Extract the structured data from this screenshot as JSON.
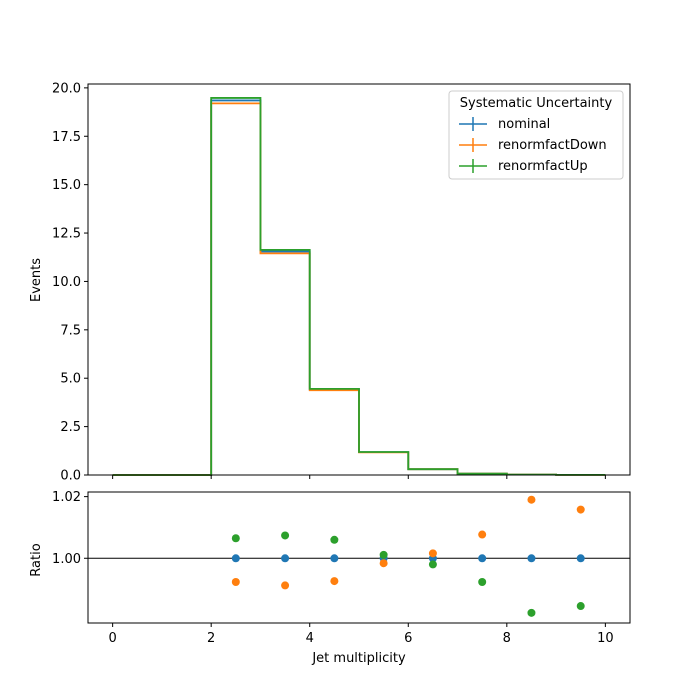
{
  "chart_data": [
    {
      "type": "line",
      "panel": "main",
      "style": "step histogram",
      "x": [
        0,
        1,
        2,
        3,
        4,
        5,
        6,
        7,
        8,
        9,
        10
      ],
      "bins": [
        [
          0,
          1
        ],
        [
          1,
          2
        ],
        [
          2,
          3
        ],
        [
          3,
          4
        ],
        [
          4,
          5
        ],
        [
          5,
          6
        ],
        [
          6,
          7
        ],
        [
          7,
          8
        ],
        [
          8,
          9
        ],
        [
          9,
          10
        ]
      ],
      "ylabel": "Events",
      "xlabel": "Jet multiplicity",
      "xlim": [
        -0.5,
        10.5
      ],
      "ylim": [
        0,
        20.2
      ],
      "yticks": [
        "0.0",
        "2.5",
        "5.0",
        "7.5",
        "10.0",
        "12.5",
        "15.0",
        "17.5",
        "20.0"
      ],
      "xticks": [
        "0",
        "2",
        "4",
        "6",
        "8",
        "10"
      ],
      "grid": false,
      "legend": {
        "title": "Systematic Uncertainty",
        "placement": "top-right"
      },
      "series": [
        {
          "name": "nominal",
          "color": "#1f77b4",
          "values": [
            0,
            0,
            19.35,
            11.55,
            4.42,
            1.18,
            0.3,
            0.07,
            0.02,
            0.005
          ]
        },
        {
          "name": "renormfactDown",
          "color": "#ff7f0e",
          "values": [
            0,
            0,
            19.2,
            11.45,
            4.38,
            1.17,
            0.3,
            0.07,
            0.02,
            0.005
          ]
        },
        {
          "name": "renormfactUp",
          "color": "#2ca02c",
          "values": [
            0,
            0,
            19.48,
            11.63,
            4.45,
            1.19,
            0.3,
            0.07,
            0.02,
            0.005
          ]
        }
      ]
    },
    {
      "type": "scatter",
      "panel": "ratio",
      "ylabel": "Ratio",
      "xlabel": "Jet multiplicity",
      "xlim": [
        -0.5,
        10.5
      ],
      "ylim": [
        0.979,
        1.0215
      ],
      "yticks": [
        "1.00",
        "1.02"
      ],
      "xticks": [
        "0",
        "2",
        "4",
        "6",
        "8",
        "10"
      ],
      "reference_line": 1.0,
      "x": [
        2.5,
        3.5,
        4.5,
        5.5,
        6.5,
        7.5,
        8.5,
        9.5
      ],
      "series": [
        {
          "name": "nominal",
          "color": "#1f77b4",
          "values": [
            1.0,
            1.0,
            1.0,
            1.0,
            1.0,
            1.0,
            1.0,
            1.0
          ]
        },
        {
          "name": "renormfactDown",
          "color": "#ff7f0e",
          "values": [
            0.9923,
            0.9912,
            0.9926,
            0.9984,
            1.0016,
            1.0077,
            1.019,
            1.0158
          ]
        },
        {
          "name": "renormfactUp",
          "color": "#2ca02c",
          "values": [
            1.0065,
            1.0074,
            1.006,
            1.0011,
            0.998,
            0.9923,
            0.9823,
            0.9845
          ]
        }
      ]
    }
  ]
}
